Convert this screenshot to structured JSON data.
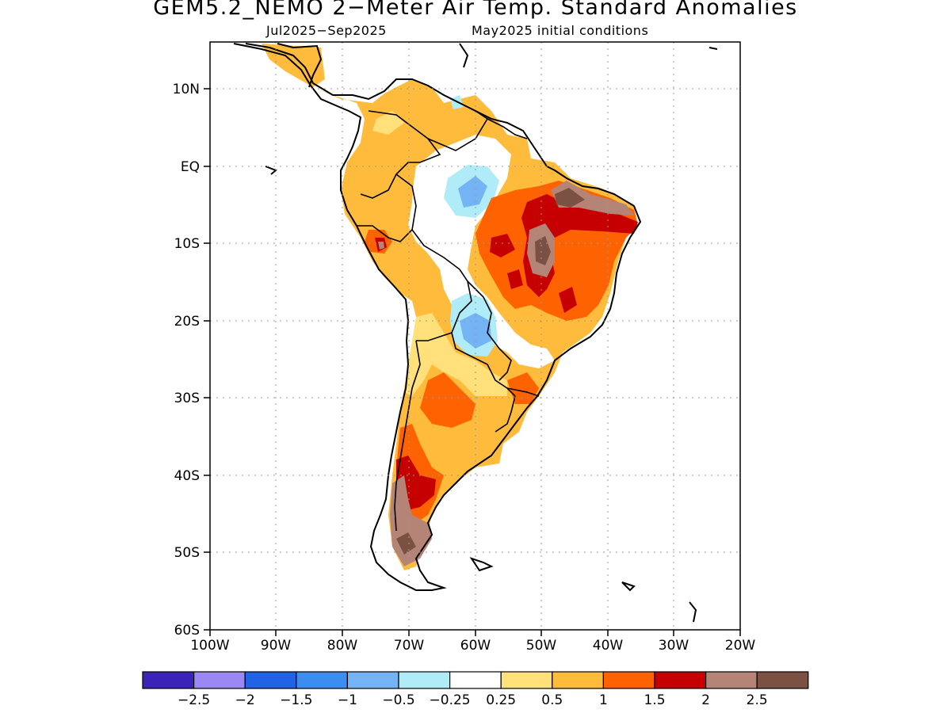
{
  "header": {
    "title": "GEM5.2_NEMO 2−Meter Air Temp. Standard Anomalies",
    "period": "Jul2025−Sep2025",
    "init": "May2025 initial conditions"
  },
  "map": {
    "region": "South America",
    "projection": "lat-lon",
    "lon_range": [
      -100,
      -20
    ],
    "lat_range": [
      -60,
      15
    ],
    "grid": true,
    "lat_labels": [
      "10N",
      "EQ",
      "10S",
      "20S",
      "30S",
      "40S",
      "50S",
      "60S"
    ],
    "lon_labels": [
      "100W",
      "90W",
      "80W",
      "70W",
      "60W",
      "50W",
      "40W",
      "30W",
      "20W"
    ]
  },
  "legend": {
    "colors": [
      "#3b23b5",
      "#9b88f2",
      "#2262e4",
      "#3d8def",
      "#74b4f5",
      "#b0ecf7",
      "#ffffff",
      "#ffe07a",
      "#ffbb3c",
      "#ff6200",
      "#c60000",
      "#b48476",
      "#7b5143"
    ],
    "labels": [
      "−2.5",
      "−2",
      "−1.5",
      "−1",
      "−0.5",
      "−0.25",
      "0.25",
      "0.5",
      "1",
      "1.5",
      "2",
      "2.5"
    ]
  },
  "chart_data": {
    "type": "heatmap",
    "variable": "2-Meter Air Temperature Standard Anomaly",
    "period": "Jul2025−Sep2025",
    "initial_conditions": "May2025",
    "color_levels": [
      -2.5,
      -2,
      -1.5,
      -1,
      -0.5,
      -0.25,
      0.25,
      0.5,
      1,
      1.5,
      2,
      2.5
    ],
    "regions": [
      {
        "area": "Colombia / Venezuela",
        "anomaly": "0.5 to 1"
      },
      {
        "area": "Western Amazon / Peru lowlands",
        "anomaly": "0.5 to 1"
      },
      {
        "area": "Central Amazon",
        "anomaly": "-1 to 0.25"
      },
      {
        "area": "Northeast Brazil",
        "anomaly": "1 to 2.5+"
      },
      {
        "area": "Central Brazil",
        "anomaly": "1 to 2.5"
      },
      {
        "area": "Paraguay / Bolivian Chaco",
        "anomaly": "-1 to 0.25"
      },
      {
        "area": "Central Argentina",
        "anomaly": "0.5 to 1.5"
      },
      {
        "area": "Southern Chile / Patagonia",
        "anomaly": "1.5 to 2.5+"
      }
    ]
  }
}
